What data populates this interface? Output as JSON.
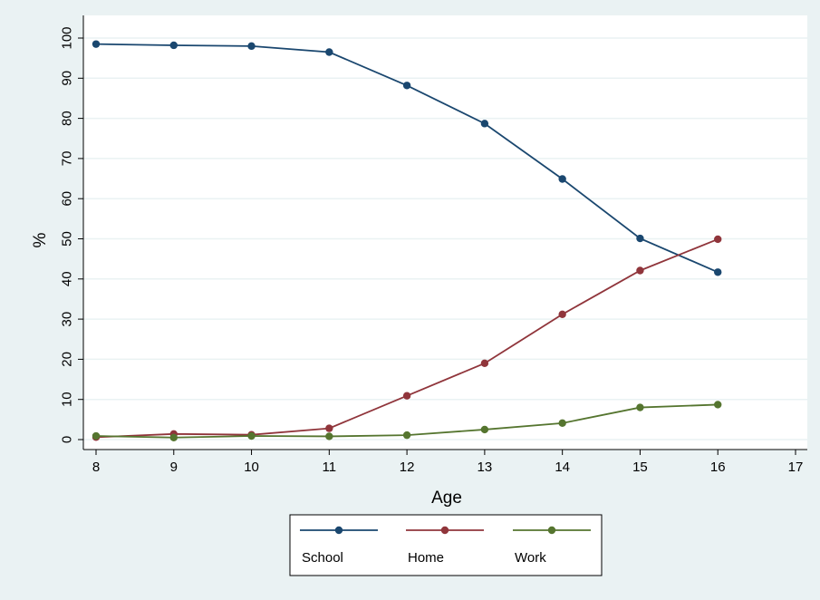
{
  "chart_data": {
    "type": "line",
    "xlabel": "Age",
    "ylabel": "%",
    "x": [
      8,
      9,
      10,
      11,
      12,
      13,
      14,
      15,
      16
    ],
    "xlim": [
      8,
      17
    ],
    "ylim": [
      0,
      100
    ],
    "xticks": [
      "8",
      "9",
      "10",
      "11",
      "12",
      "13",
      "14",
      "15",
      "16",
      "17"
    ],
    "yticks": [
      "0",
      "10",
      "20",
      "30",
      "40",
      "50",
      "60",
      "70",
      "80",
      "90",
      "100"
    ],
    "grid": true,
    "legend_position": "bottom",
    "series": [
      {
        "name": "School",
        "color": "#1a476f",
        "values": [
          98.5,
          98.2,
          98.0,
          96.5,
          88.2,
          78.7,
          64.9,
          50.1,
          41.7
        ]
      },
      {
        "name": "Home",
        "color": "#90353b",
        "values": [
          0.6,
          1.4,
          1.2,
          2.8,
          10.9,
          19.0,
          31.2,
          42.1,
          49.9
        ]
      },
      {
        "name": "Work",
        "color": "#55752f",
        "values": [
          0.9,
          0.5,
          0.9,
          0.8,
          1.1,
          2.5,
          4.1,
          8.0,
          8.7
        ]
      }
    ]
  }
}
